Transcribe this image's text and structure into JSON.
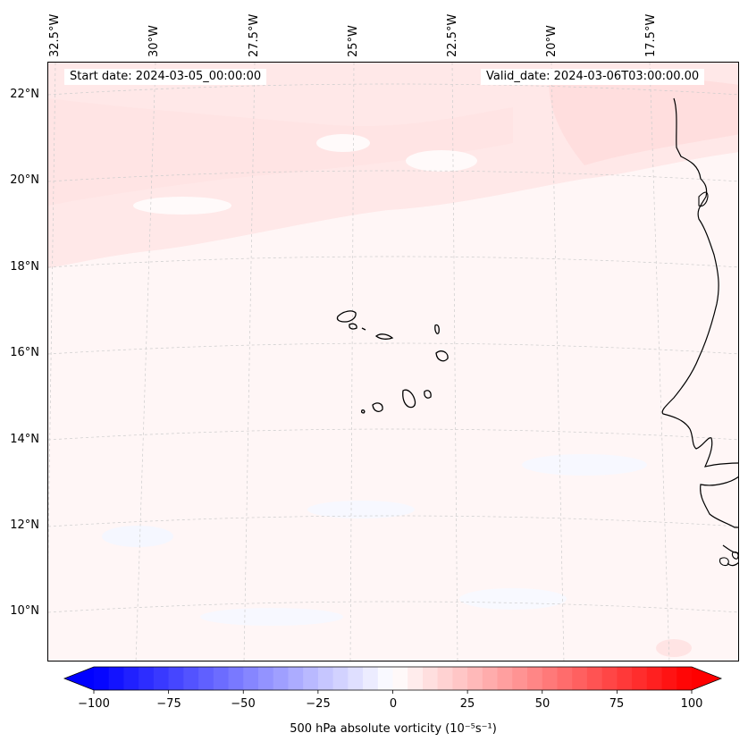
{
  "header": {
    "start_date": "Start date: 2024-03-05_00:00:00",
    "valid_date": "Valid_date: 2024-03-06T03:00:00.00"
  },
  "axes": {
    "lat_labels": [
      "22°N",
      "20°N",
      "18°N",
      "16°N",
      "14°N",
      "12°N",
      "10°N"
    ],
    "lon_labels": [
      "32.5°W",
      "30°W",
      "27.5°W",
      "25°W",
      "22.5°W",
      "20°W",
      "17.5°W"
    ]
  },
  "colorbar": {
    "label": "500 hPa absolute vorticity (10⁻⁵s⁻¹)",
    "ticks": [
      "−100",
      "−75",
      "−50",
      "−25",
      "0",
      "25",
      "50",
      "75",
      "100"
    ],
    "range": [
      -100,
      100
    ],
    "colormap": "bwr",
    "min_color": "#0000ff",
    "mid_color": "#ffffff",
    "max_color": "#ff0000",
    "extend": "both"
  },
  "map": {
    "background_color": "#fff7f7",
    "coastline_color": "#000000",
    "gridline_color": "#bbbbbb",
    "features": [
      "coastline-africa",
      "cape-verde-islands"
    ]
  }
}
